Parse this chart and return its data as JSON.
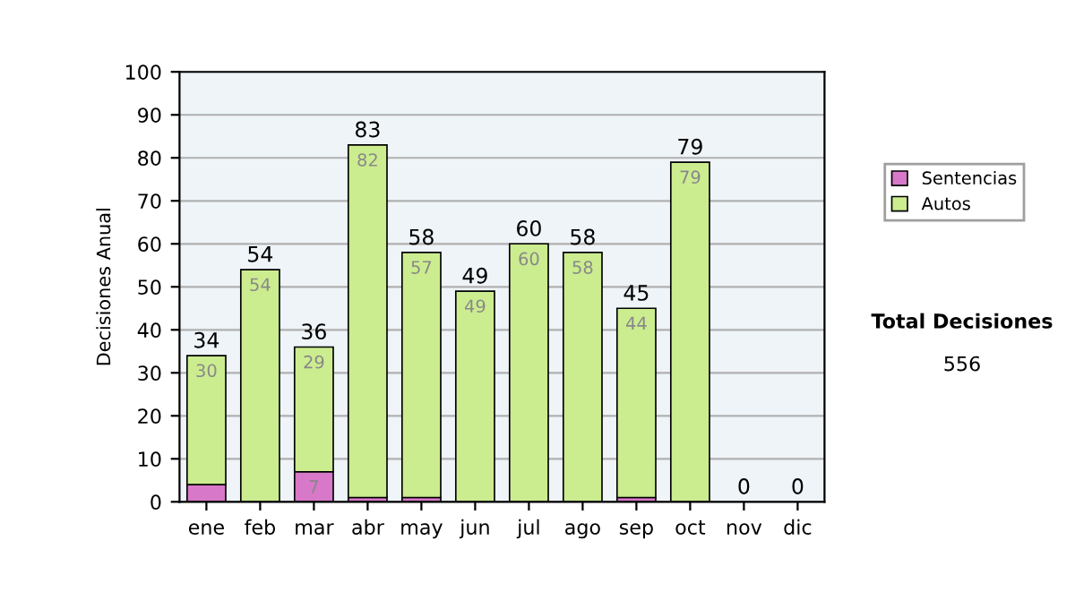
{
  "chart_data": {
    "type": "bar",
    "stacked": true,
    "ylabel": "Decisiones Anual",
    "categories": [
      "ene",
      "feb",
      "mar",
      "abr",
      "may",
      "jun",
      "jul",
      "ago",
      "sep",
      "oct",
      "nov",
      "dic"
    ],
    "series": [
      {
        "name": "Sentencias",
        "color": "#d878c8",
        "values": [
          4,
          0,
          7,
          1,
          1,
          0,
          0,
          0,
          1,
          0,
          0,
          0
        ],
        "value_labels": [
          null,
          null,
          "7",
          null,
          null,
          null,
          null,
          null,
          null,
          null,
          null,
          null
        ]
      },
      {
        "name": "Autos",
        "color": "#ccec90",
        "values": [
          30,
          54,
          29,
          82,
          57,
          49,
          60,
          58,
          44,
          79,
          0,
          0
        ],
        "value_labels": [
          "30",
          "54",
          "29",
          "82",
          "57",
          "49",
          "60",
          "58",
          "44",
          "79",
          null,
          null
        ]
      }
    ],
    "totals": [
      "34",
      "54",
      "36",
      "83",
      "58",
      "49",
      "60",
      "58",
      "45",
      "79",
      "0",
      "0"
    ],
    "ylim": [
      0,
      100
    ],
    "yticks": [
      0,
      10,
      20,
      30,
      40,
      50,
      60,
      70,
      80,
      90,
      100
    ],
    "grid": "y",
    "legend": "right",
    "annotations": [
      "Total Decisiones",
      "556"
    ]
  }
}
